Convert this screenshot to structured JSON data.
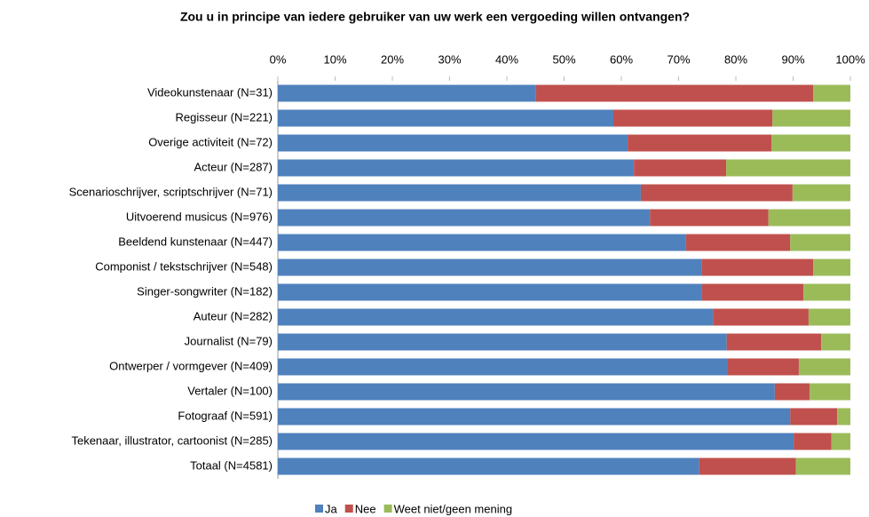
{
  "chart_data": {
    "type": "stacked_barh",
    "title": "Zou u in principe van iedere gebruiker van uw werk een vergoeding willen ontvangen?",
    "categories": [
      "Videokunstenaar (N=31)",
      "Regisseur (N=221)",
      "Overige activiteit (N=72)",
      "Acteur (N=287)",
      "Scenarioschrijver, scriptschrijver (N=71)",
      "Uitvoerend musicus (N=976)",
      "Beeldend kunstenaar (N=447)",
      "Componist / tekstschrijver (N=548)",
      "Singer-songwriter (N=182)",
      "Auteur (N=282)",
      "Journalist (N=79)",
      "Ontwerper / vormgever (N=409)",
      "Vertaler (N=100)",
      "Fotograaf (N=591)",
      "Tekenaar, illustrator, cartoonist (N=285)",
      "Totaal (N=4581)"
    ],
    "series": [
      {
        "name": "Ja",
        "color": "#4f81bd",
        "values": [
          45.1,
          58.6,
          61.1,
          62.2,
          63.4,
          65.0,
          71.3,
          74.0,
          74.1,
          76.0,
          78.4,
          78.6,
          86.8,
          89.5,
          90.1,
          73.6
        ]
      },
      {
        "name": "Nee",
        "color": "#c0504d",
        "values": [
          48.4,
          27.8,
          25.1,
          16.1,
          26.5,
          20.7,
          18.2,
          19.5,
          17.7,
          16.7,
          16.5,
          12.4,
          6.1,
          8.2,
          6.6,
          16.9
        ]
      },
      {
        "name": "Weet niet/geen mening",
        "color": "#9bbb59",
        "values": [
          6.5,
          13.6,
          13.8,
          21.7,
          10.1,
          14.3,
          10.5,
          6.5,
          8.2,
          7.3,
          5.1,
          9.0,
          7.1,
          2.3,
          3.3,
          9.5
        ]
      }
    ],
    "xlim": [
      0,
      100
    ],
    "xticks": [
      {
        "value": 0,
        "label": "0%"
      },
      {
        "value": 10,
        "label": "10%"
      },
      {
        "value": 20,
        "label": "20%"
      },
      {
        "value": 30,
        "label": "30%"
      },
      {
        "value": 40,
        "label": "40%"
      },
      {
        "value": 50,
        "label": "50%"
      },
      {
        "value": 60,
        "label": "60%"
      },
      {
        "value": 70,
        "label": "70%"
      },
      {
        "value": 80,
        "label": "80%"
      },
      {
        "value": 90,
        "label": "90%"
      },
      {
        "value": 100,
        "label": "100%"
      }
    ],
    "grid": false,
    "legend": "bottom"
  }
}
